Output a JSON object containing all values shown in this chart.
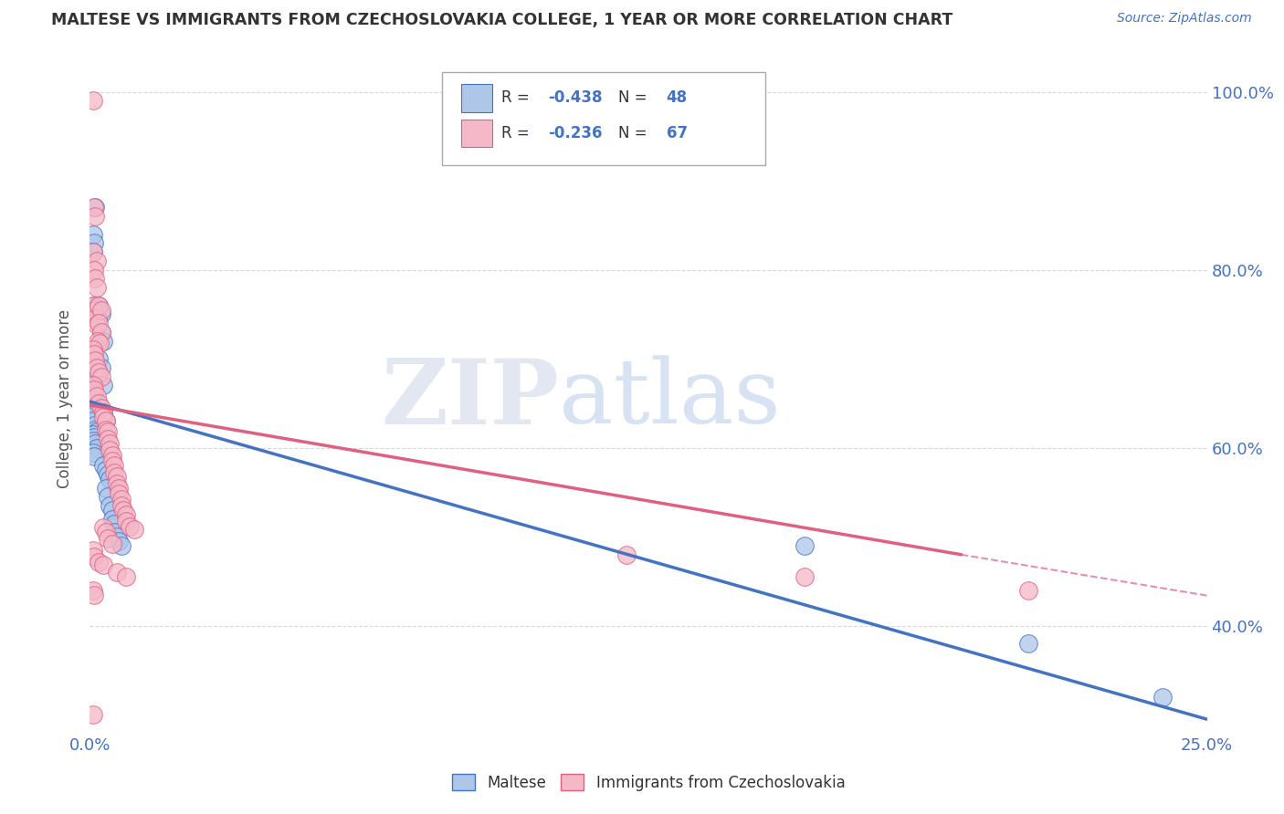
{
  "title": "MALTESE VS IMMIGRANTS FROM CZECHOSLOVAKIA COLLEGE, 1 YEAR OR MORE CORRELATION CHART",
  "source": "Source: ZipAtlas.com",
  "ylabel": "College, 1 year or more",
  "watermark_zip": "ZIP",
  "watermark_atlas": "atlas",
  "legend_r_blue": "-0.438",
  "legend_n_blue": "48",
  "legend_r_pink": "-0.236",
  "legend_n_pink": "67",
  "blue_color": "#aec6e8",
  "blue_line_color": "#4472c4",
  "pink_color": "#f4b8c8",
  "pink_line_color": "#e06080",
  "blue_scatter": [
    [
      0.0008,
      0.67
    ],
    [
      0.001,
      0.66
    ],
    [
      0.0012,
      0.65
    ],
    [
      0.0015,
      0.64
    ],
    [
      0.0008,
      0.63
    ],
    [
      0.001,
      0.625
    ],
    [
      0.0012,
      0.62
    ],
    [
      0.0015,
      0.618
    ],
    [
      0.0008,
      0.615
    ],
    [
      0.001,
      0.612
    ],
    [
      0.0008,
      0.608
    ],
    [
      0.0012,
      0.605
    ],
    [
      0.0015,
      0.6
    ],
    [
      0.0008,
      0.595
    ],
    [
      0.001,
      0.59
    ],
    [
      0.0008,
      0.76
    ],
    [
      0.001,
      0.75
    ],
    [
      0.0012,
      0.745
    ],
    [
      0.0008,
      0.84
    ],
    [
      0.001,
      0.83
    ],
    [
      0.0008,
      0.82
    ],
    [
      0.0012,
      0.87
    ],
    [
      0.002,
      0.76
    ],
    [
      0.0025,
      0.75
    ],
    [
      0.0018,
      0.745
    ],
    [
      0.0025,
      0.73
    ],
    [
      0.003,
      0.72
    ],
    [
      0.002,
      0.7
    ],
    [
      0.0025,
      0.69
    ],
    [
      0.0018,
      0.68
    ],
    [
      0.003,
      0.67
    ],
    [
      0.003,
      0.64
    ],
    [
      0.0035,
      0.63
    ],
    [
      0.003,
      0.58
    ],
    [
      0.0035,
      0.575
    ],
    [
      0.004,
      0.57
    ],
    [
      0.0045,
      0.565
    ],
    [
      0.0035,
      0.555
    ],
    [
      0.004,
      0.545
    ],
    [
      0.0045,
      0.535
    ],
    [
      0.005,
      0.53
    ],
    [
      0.005,
      0.52
    ],
    [
      0.0055,
      0.515
    ],
    [
      0.0055,
      0.505
    ],
    [
      0.006,
      0.5
    ],
    [
      0.0065,
      0.495
    ],
    [
      0.007,
      0.49
    ],
    [
      0.16,
      0.49
    ],
    [
      0.21,
      0.38
    ],
    [
      0.24,
      0.32
    ]
  ],
  "pink_scatter": [
    [
      0.0008,
      0.99
    ],
    [
      0.001,
      0.87
    ],
    [
      0.0012,
      0.86
    ],
    [
      0.0008,
      0.82
    ],
    [
      0.0015,
      0.81
    ],
    [
      0.001,
      0.8
    ],
    [
      0.0012,
      0.79
    ],
    [
      0.0015,
      0.78
    ],
    [
      0.0008,
      0.76
    ],
    [
      0.001,
      0.755
    ],
    [
      0.0012,
      0.745
    ],
    [
      0.0015,
      0.738
    ],
    [
      0.002,
      0.76
    ],
    [
      0.0025,
      0.755
    ],
    [
      0.002,
      0.74
    ],
    [
      0.0025,
      0.73
    ],
    [
      0.0018,
      0.72
    ],
    [
      0.0022,
      0.718
    ],
    [
      0.0008,
      0.71
    ],
    [
      0.001,
      0.705
    ],
    [
      0.0012,
      0.698
    ],
    [
      0.0015,
      0.69
    ],
    [
      0.002,
      0.685
    ],
    [
      0.0025,
      0.68
    ],
    [
      0.0008,
      0.67
    ],
    [
      0.001,
      0.665
    ],
    [
      0.0015,
      0.658
    ],
    [
      0.002,
      0.65
    ],
    [
      0.0025,
      0.645
    ],
    [
      0.003,
      0.64
    ],
    [
      0.003,
      0.635
    ],
    [
      0.0035,
      0.63
    ],
    [
      0.0035,
      0.62
    ],
    [
      0.004,
      0.618
    ],
    [
      0.004,
      0.61
    ],
    [
      0.0045,
      0.605
    ],
    [
      0.0045,
      0.598
    ],
    [
      0.005,
      0.592
    ],
    [
      0.005,
      0.585
    ],
    [
      0.0055,
      0.58
    ],
    [
      0.0055,
      0.572
    ],
    [
      0.006,
      0.568
    ],
    [
      0.006,
      0.56
    ],
    [
      0.0065,
      0.555
    ],
    [
      0.0065,
      0.548
    ],
    [
      0.007,
      0.542
    ],
    [
      0.007,
      0.535
    ],
    [
      0.0075,
      0.53
    ],
    [
      0.008,
      0.525
    ],
    [
      0.008,
      0.518
    ],
    [
      0.009,
      0.512
    ],
    [
      0.01,
      0.508
    ],
    [
      0.003,
      0.51
    ],
    [
      0.0035,
      0.505
    ],
    [
      0.004,
      0.498
    ],
    [
      0.005,
      0.492
    ],
    [
      0.0008,
      0.485
    ],
    [
      0.001,
      0.478
    ],
    [
      0.002,
      0.472
    ],
    [
      0.003,
      0.468
    ],
    [
      0.006,
      0.46
    ],
    [
      0.008,
      0.455
    ],
    [
      0.0008,
      0.44
    ],
    [
      0.001,
      0.435
    ],
    [
      0.0008,
      0.3
    ],
    [
      0.12,
      0.48
    ],
    [
      0.16,
      0.455
    ],
    [
      0.21,
      0.44
    ]
  ],
  "xlim": [
    0.0,
    0.25
  ],
  "ylim": [
    0.28,
    1.03
  ],
  "xticks": [
    0.0,
    0.25
  ],
  "yticks_right": [
    0.4,
    0.6,
    0.8,
    1.0
  ],
  "blue_trend_x": [
    0.0,
    0.25
  ],
  "blue_trend_y": [
    0.652,
    0.295
  ],
  "pink_trend_x": [
    0.0,
    0.195
  ],
  "pink_trend_y": [
    0.648,
    0.48
  ],
  "background_color": "#ffffff",
  "grid_color": "#d8d8d8",
  "tick_color": "#4472c4"
}
